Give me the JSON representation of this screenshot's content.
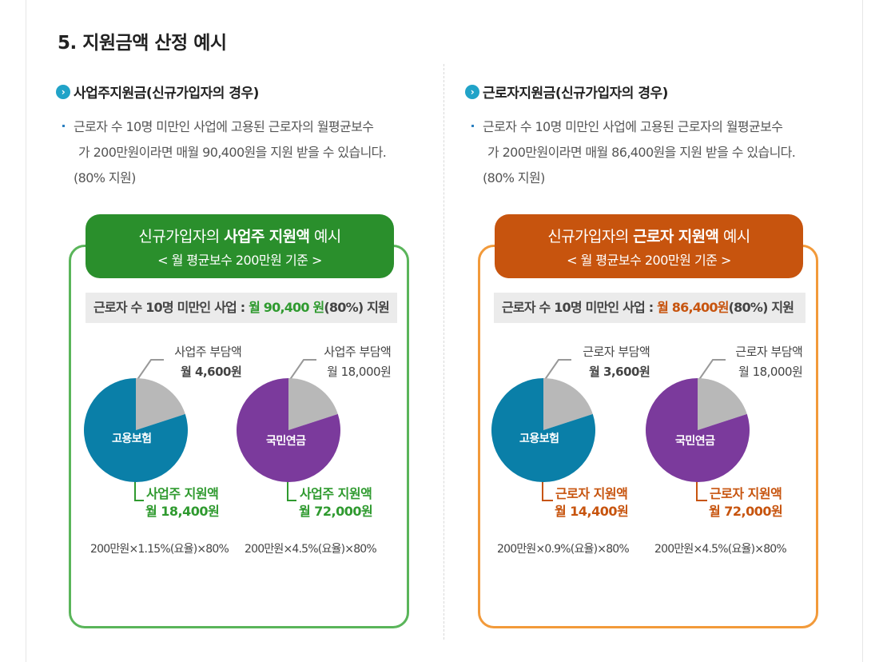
{
  "section_title": "5. 지원금액 산정 예시",
  "left": {
    "heading": "사업주지원금(신규가입자의 경우)",
    "desc_line1": "근로자 수 10명 미만인 사업에 고용된 근로자의 월평균보수",
    "desc_line2": "가 200만원이라면 매월 90,400원을 지원 받을 수 있습니다.",
    "desc_line3": "(80% 지원)",
    "banner_prefix": "신규가입자의 ",
    "banner_bold": "사업주 지원액",
    "banner_suffix": " 예시",
    "banner_sub": "< 월 평균보수 200만원 기준 >",
    "bar_prefix": "근로자 수 10명 미만인 사업 : ",
    "bar_amount": "월 90,400 원",
    "bar_suffix": "(80%) 지원",
    "pie1": {
      "name": "고용보험",
      "burden_label": "사업주 부담액",
      "burden_value": "월 4,600원",
      "support_label": "사업주 지원액",
      "support_value": "월 18,400원",
      "formula": "200만원×1.15%(요율)×80%"
    },
    "pie2": {
      "name": "국민연금",
      "burden_label": "사업주 부담액",
      "burden_value": "월 18,000원",
      "support_label": "사업주 지원액",
      "support_value": "월 72,000원",
      "formula": "200만원×4.5%(요율)×80%"
    }
  },
  "right": {
    "heading": "근로자지원금(신규가입자의 경우)",
    "desc_line1": "근로자 수 10명 미만인 사업에 고용된 근로자의 월평균보수",
    "desc_line2": "가 200만원이라면 매월 86,400원을 지원 받을 수 있습니다.",
    "desc_line3": "(80% 지원)",
    "banner_prefix": "신규가입자의 ",
    "banner_bold": "근로자 지원액",
    "banner_suffix": " 예시",
    "banner_sub": "< 월 평균보수 200만원 기준 >",
    "bar_prefix": "근로자 수 10명 미만인 사업 : ",
    "bar_amount": "월 86,400원",
    "bar_suffix": "(80%) 지원",
    "pie1": {
      "name": "고용보험",
      "burden_label": "근로자 부담액",
      "burden_value": "월 3,600원",
      "support_label": "근로자 지원액",
      "support_value": "월 14,400원",
      "formula": "200만원×0.9%(요율)×80%"
    },
    "pie2": {
      "name": "국민연금",
      "burden_label": "근로자 부담액",
      "burden_value": "월 18,000원",
      "support_label": "근로자 지원액",
      "support_value": "월 72,000원",
      "formula": "200만원×4.5%(요율)×80%"
    }
  },
  "colors": {
    "green": "#2a8f2c",
    "orange": "#c7540e",
    "employment_insurance": "#0a7fa8",
    "national_pension": "#7b3a9c",
    "burden_slice": "#b8b8b8"
  },
  "chart_data": [
    {
      "type": "pie",
      "title": "고용보험",
      "series": [
        {
          "name": "사업주 부담액",
          "value": 4600
        },
        {
          "name": "사업주 지원액",
          "value": 18400
        }
      ]
    },
    {
      "type": "pie",
      "title": "국민연금",
      "series": [
        {
          "name": "사업주 부담액",
          "value": 18000
        },
        {
          "name": "사업주 지원액",
          "value": 72000
        }
      ]
    },
    {
      "type": "pie",
      "title": "고용보험",
      "series": [
        {
          "name": "근로자 부담액",
          "value": 3600
        },
        {
          "name": "근로자 지원액",
          "value": 14400
        }
      ]
    },
    {
      "type": "pie",
      "title": "국민연금",
      "series": [
        {
          "name": "근로자 부담액",
          "value": 18000
        },
        {
          "name": "근로자 지원액",
          "value": 72000
        }
      ]
    }
  ]
}
